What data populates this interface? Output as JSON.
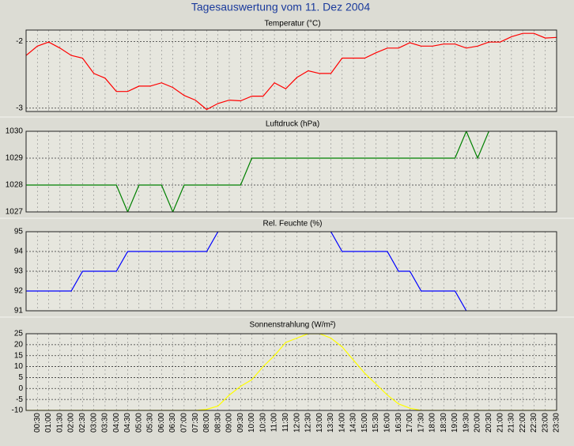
{
  "title": "Tagesauswertung vom 11. Dez 2004",
  "chart_data": [
    {
      "type": "line",
      "title": "Temperatur (°C)",
      "ylim": [
        -3.05,
        -1.83
      ],
      "yticks": [
        -3,
        -2
      ],
      "grid": true,
      "series": [
        {
          "name": "Temperatur",
          "color": "#ff0000",
          "values": [
            -2.21,
            -2.07,
            -2.01,
            -2.1,
            -2.21,
            -2.25,
            -2.48,
            -2.55,
            -2.75,
            -2.75,
            -2.67,
            -2.67,
            -2.62,
            -2.69,
            -2.81,
            -2.88,
            -3.02,
            -2.93,
            -2.88,
            -2.89,
            -2.82,
            -2.82,
            -2.62,
            -2.71,
            -2.54,
            -2.44,
            -2.48,
            -2.48,
            -2.25,
            -2.25,
            -2.25,
            -2.17,
            -2.1,
            -2.1,
            -2.02,
            -2.07,
            -2.07,
            -2.04,
            -2.04,
            -2.1,
            -2.07,
            -2.01,
            -2.01,
            -1.93,
            -1.88,
            -1.88,
            -1.95,
            -1.94
          ]
        }
      ]
    },
    {
      "type": "line",
      "title": "Luftdruck (hPa)",
      "ylim": [
        1027,
        1030
      ],
      "yticks": [
        1027,
        1028,
        1029,
        1030
      ],
      "grid": true,
      "series": [
        {
          "name": "Luftdruck",
          "color": "#008000",
          "values": [
            1028,
            1028,
            1028,
            1028,
            1028,
            1028,
            1028,
            1028,
            1028,
            1027,
            1028,
            1028,
            1028,
            1027,
            1028,
            1028,
            1028,
            1028,
            1028,
            1028,
            1029,
            1029,
            1029,
            1029,
            1029,
            1029,
            1029,
            1029,
            1029,
            1029,
            1029,
            1029,
            1029,
            1029,
            1029,
            1029,
            1029,
            1029,
            1029,
            1030,
            1029,
            1030,
            null,
            null,
            null,
            null,
            null,
            null
          ]
        }
      ]
    },
    {
      "type": "line",
      "title": "Rel. Feuchte (%)",
      "ylim": [
        91,
        95
      ],
      "yticks": [
        91,
        92,
        93,
        94,
        95
      ],
      "grid": true,
      "series": [
        {
          "name": "Rel. Feuchte",
          "color": "#0000ff",
          "values": [
            92,
            92,
            92,
            92,
            92,
            93,
            93,
            93,
            93,
            94,
            94,
            94,
            94,
            94,
            94,
            94,
            94,
            95,
            null,
            null,
            null,
            null,
            null,
            null,
            null,
            null,
            null,
            95,
            94,
            94,
            94,
            94,
            94,
            93,
            93,
            92,
            92,
            92,
            92,
            91,
            null,
            null,
            null,
            null,
            null,
            null,
            null,
            null
          ]
        }
      ]
    },
    {
      "type": "line",
      "title": "Sonnenstrahlung (W/m²)",
      "ylim": [
        -10,
        25
      ],
      "yticks": [
        -10,
        -5,
        0,
        5,
        10,
        15,
        20,
        25
      ],
      "grid": true,
      "categories": [
        null,
        "00:30",
        "01:00",
        "01:30",
        "02:00",
        "02:30",
        "03:00",
        "03:30",
        "04:00",
        "04:30",
        "05:00",
        "05:30",
        "06:00",
        "06:30",
        "07:00",
        "07:30",
        "08:00",
        "08:30",
        "09:00",
        "09:30",
        "10:00",
        "10:30",
        "11:00",
        "11:30",
        "12:00",
        "12:30",
        "13:00",
        "13:30",
        "14:00",
        "14:30",
        "15:00",
        "15:30",
        "16:00",
        "16:30",
        "17:00",
        "17:30",
        "18:00",
        "18:30",
        "19:00",
        "19:30",
        "20:00",
        "20:30",
        "21:00",
        "21:30",
        "22:00",
        "22:30",
        "23:00",
        "23:30"
      ],
      "series": [
        {
          "name": "Sonnenstrahlung",
          "color": "#ffff00",
          "values": [
            -10,
            -10,
            -10,
            -10,
            -10,
            -10,
            -10,
            -10,
            -10,
            -10,
            -10,
            -10,
            -10,
            -10,
            -10,
            -10,
            -9.5,
            -8,
            -3,
            1,
            4,
            10,
            15,
            21,
            23,
            25,
            25,
            23,
            19,
            13,
            7,
            2,
            -3,
            -7,
            -9,
            -10,
            -10,
            -10,
            -10,
            -10,
            -10,
            -10,
            -10,
            -10,
            -10,
            -10,
            -10,
            -10
          ]
        }
      ]
    }
  ]
}
